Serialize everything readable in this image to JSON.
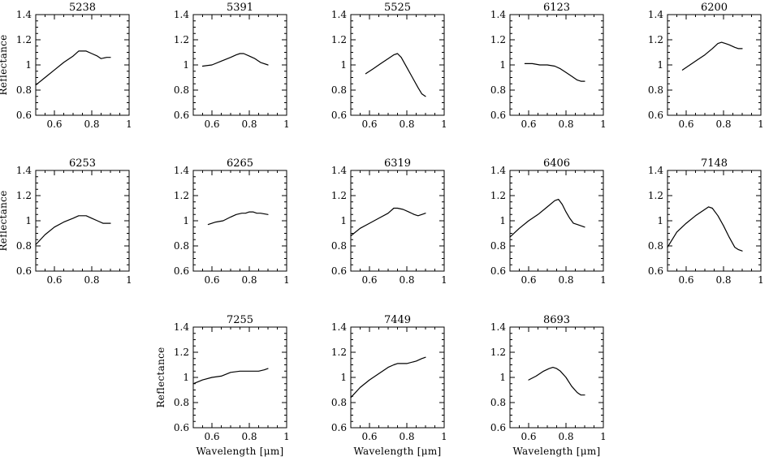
{
  "chart_data": [
    {
      "type": "line",
      "title": "5238",
      "xlabel": "",
      "ylabel": "Reflectance",
      "xlim": [
        0.5,
        1.0
      ],
      "ylim": [
        0.6,
        1.4
      ],
      "xticks": [
        "0.6",
        "0.8",
        "1"
      ],
      "yticks": [
        "0.6",
        "0.8",
        "1",
        "1.2",
        "1.4"
      ],
      "series": [
        {
          "x": [
            0.5,
            0.55,
            0.6,
            0.65,
            0.7,
            0.73,
            0.75,
            0.77,
            0.8,
            0.83,
            0.85,
            0.88,
            0.9
          ],
          "y": [
            0.84,
            0.9,
            0.96,
            1.02,
            1.07,
            1.11,
            1.11,
            1.11,
            1.09,
            1.07,
            1.05,
            1.06,
            1.06
          ]
        }
      ]
    },
    {
      "type": "line",
      "title": "5391",
      "xlabel": "",
      "ylabel": "",
      "xlim": [
        0.5,
        1.0
      ],
      "ylim": [
        0.6,
        1.4
      ],
      "xticks": [
        "0.6",
        "0.8",
        "1"
      ],
      "yticks": [
        "0.6",
        "0.8",
        "1",
        "1.2",
        "1.4"
      ],
      "series": [
        {
          "x": [
            0.55,
            0.6,
            0.65,
            0.7,
            0.73,
            0.75,
            0.77,
            0.8,
            0.83,
            0.86,
            0.9
          ],
          "y": [
            0.99,
            1.0,
            1.03,
            1.06,
            1.08,
            1.09,
            1.09,
            1.07,
            1.05,
            1.02,
            1.0
          ]
        }
      ]
    },
    {
      "type": "line",
      "title": "5525",
      "xlabel": "",
      "ylabel": "",
      "xlim": [
        0.5,
        1.0
      ],
      "ylim": [
        0.6,
        1.4
      ],
      "xticks": [
        "0.6",
        "0.8",
        "1"
      ],
      "yticks": [
        "0.6",
        "0.8",
        "1",
        "1.2",
        "1.4"
      ],
      "series": [
        {
          "x": [
            0.58,
            0.62,
            0.66,
            0.7,
            0.73,
            0.75,
            0.77,
            0.8,
            0.83,
            0.86,
            0.88,
            0.9
          ],
          "y": [
            0.93,
            0.97,
            1.01,
            1.05,
            1.08,
            1.09,
            1.06,
            0.98,
            0.9,
            0.82,
            0.77,
            0.75
          ]
        }
      ]
    },
    {
      "type": "line",
      "title": "6123",
      "xlabel": "",
      "ylabel": "",
      "xlim": [
        0.5,
        1.0
      ],
      "ylim": [
        0.6,
        1.4
      ],
      "xticks": [
        "0.6",
        "0.8",
        "1"
      ],
      "yticks": [
        "0.6",
        "0.8",
        "1",
        "1.2",
        "1.4"
      ],
      "series": [
        {
          "x": [
            0.58,
            0.62,
            0.66,
            0.7,
            0.74,
            0.77,
            0.8,
            0.83,
            0.86,
            0.88,
            0.9
          ],
          "y": [
            1.01,
            1.01,
            1.0,
            1.0,
            0.99,
            0.97,
            0.94,
            0.91,
            0.88,
            0.87,
            0.87
          ]
        }
      ]
    },
    {
      "type": "line",
      "title": "6200",
      "xlabel": "",
      "ylabel": "",
      "xlim": [
        0.5,
        1.0
      ],
      "ylim": [
        0.6,
        1.4
      ],
      "xticks": [
        "0.6",
        "0.8",
        "1"
      ],
      "yticks": [
        "0.6",
        "0.8",
        "1",
        "1.2",
        "1.4"
      ],
      "series": [
        {
          "x": [
            0.58,
            0.62,
            0.66,
            0.7,
            0.74,
            0.77,
            0.79,
            0.81,
            0.83,
            0.86,
            0.88,
            0.9
          ],
          "y": [
            0.96,
            1.0,
            1.04,
            1.08,
            1.13,
            1.17,
            1.18,
            1.17,
            1.16,
            1.14,
            1.13,
            1.13
          ]
        }
      ]
    },
    {
      "type": "line",
      "title": "6253",
      "xlabel": "",
      "ylabel": "Reflectance",
      "xlim": [
        0.5,
        1.0
      ],
      "ylim": [
        0.6,
        1.4
      ],
      "xticks": [
        "0.6",
        "0.8",
        "1"
      ],
      "yticks": [
        "0.6",
        "0.8",
        "1",
        "1.2",
        "1.4"
      ],
      "series": [
        {
          "x": [
            0.5,
            0.55,
            0.6,
            0.65,
            0.7,
            0.73,
            0.75,
            0.77,
            0.8,
            0.83,
            0.86,
            0.9
          ],
          "y": [
            0.81,
            0.89,
            0.95,
            0.99,
            1.02,
            1.04,
            1.04,
            1.04,
            1.02,
            1.0,
            0.98,
            0.98
          ]
        }
      ]
    },
    {
      "type": "line",
      "title": "6265",
      "xlabel": "",
      "ylabel": "",
      "xlim": [
        0.5,
        1.0
      ],
      "ylim": [
        0.6,
        1.4
      ],
      "xticks": [
        "0.6",
        "0.8",
        "1"
      ],
      "yticks": [
        "0.6",
        "0.8",
        "1",
        "1.2",
        "1.4"
      ],
      "series": [
        {
          "x": [
            0.58,
            0.62,
            0.66,
            0.7,
            0.73,
            0.76,
            0.78,
            0.8,
            0.82,
            0.84,
            0.86,
            0.9
          ],
          "y": [
            0.97,
            0.99,
            1.0,
            1.03,
            1.05,
            1.06,
            1.06,
            1.07,
            1.07,
            1.06,
            1.06,
            1.05
          ]
        }
      ]
    },
    {
      "type": "line",
      "title": "6319",
      "xlabel": "",
      "ylabel": "",
      "xlim": [
        0.5,
        1.0
      ],
      "ylim": [
        0.6,
        1.4
      ],
      "xticks": [
        "0.6",
        "0.8",
        "1"
      ],
      "yticks": [
        "0.6",
        "0.8",
        "1",
        "1.2",
        "1.4"
      ],
      "series": [
        {
          "x": [
            0.5,
            0.55,
            0.6,
            0.65,
            0.7,
            0.73,
            0.75,
            0.78,
            0.81,
            0.84,
            0.86,
            0.88,
            0.9
          ],
          "y": [
            0.88,
            0.94,
            0.98,
            1.02,
            1.06,
            1.1,
            1.1,
            1.09,
            1.07,
            1.05,
            1.04,
            1.05,
            1.06
          ]
        }
      ]
    },
    {
      "type": "line",
      "title": "6406",
      "xlabel": "",
      "ylabel": "",
      "xlim": [
        0.5,
        1.0
      ],
      "ylim": [
        0.6,
        1.4
      ],
      "xticks": [
        "0.6",
        "0.8",
        "1"
      ],
      "yticks": [
        "0.6",
        "0.8",
        "1",
        "1.2",
        "1.4"
      ],
      "series": [
        {
          "x": [
            0.5,
            0.55,
            0.6,
            0.65,
            0.7,
            0.74,
            0.76,
            0.78,
            0.8,
            0.82,
            0.84,
            0.86,
            0.88,
            0.9
          ],
          "y": [
            0.87,
            0.94,
            1.0,
            1.05,
            1.11,
            1.16,
            1.17,
            1.13,
            1.07,
            1.02,
            0.98,
            0.97,
            0.96,
            0.95
          ]
        }
      ]
    },
    {
      "type": "line",
      "title": "7148",
      "xlabel": "",
      "ylabel": "",
      "xlim": [
        0.5,
        1.0
      ],
      "ylim": [
        0.6,
        1.4
      ],
      "xticks": [
        "0.6",
        "0.8",
        "1"
      ],
      "yticks": [
        "0.6",
        "0.8",
        "1",
        "1.2",
        "1.4"
      ],
      "series": [
        {
          "x": [
            0.5,
            0.55,
            0.6,
            0.65,
            0.7,
            0.72,
            0.74,
            0.77,
            0.8,
            0.83,
            0.86,
            0.88,
            0.9
          ],
          "y": [
            0.79,
            0.91,
            0.98,
            1.04,
            1.09,
            1.11,
            1.1,
            1.04,
            0.96,
            0.87,
            0.79,
            0.77,
            0.76
          ]
        }
      ]
    },
    {
      "type": "line",
      "title": "7255",
      "xlabel": "Wavelength [μm]",
      "ylabel": "Reflectance",
      "xlim": [
        0.5,
        1.0
      ],
      "ylim": [
        0.6,
        1.4
      ],
      "xticks": [
        "0.6",
        "0.8",
        "1"
      ],
      "yticks": [
        "0.6",
        "0.8",
        "1",
        "1.2",
        "1.4"
      ],
      "series": [
        {
          "x": [
            0.5,
            0.55,
            0.6,
            0.65,
            0.7,
            0.75,
            0.8,
            0.85,
            0.88,
            0.9
          ],
          "y": [
            0.95,
            0.98,
            1.0,
            1.01,
            1.04,
            1.05,
            1.05,
            1.05,
            1.06,
            1.07
          ]
        }
      ]
    },
    {
      "type": "line",
      "title": "7449",
      "xlabel": "Wavelength [μm]",
      "ylabel": "",
      "xlim": [
        0.5,
        1.0
      ],
      "ylim": [
        0.6,
        1.4
      ],
      "xticks": [
        "0.6",
        "0.8",
        "1"
      ],
      "yticks": [
        "0.6",
        "0.8",
        "1",
        "1.2",
        "1.4"
      ],
      "series": [
        {
          "x": [
            0.5,
            0.55,
            0.6,
            0.65,
            0.7,
            0.73,
            0.75,
            0.8,
            0.85,
            0.88,
            0.9
          ],
          "y": [
            0.84,
            0.92,
            0.98,
            1.03,
            1.08,
            1.1,
            1.11,
            1.11,
            1.13,
            1.15,
            1.16
          ]
        }
      ]
    },
    {
      "type": "line",
      "title": "8693",
      "xlabel": "Wavelength [μm]",
      "ylabel": "",
      "xlim": [
        0.5,
        1.0
      ],
      "ylim": [
        0.6,
        1.4
      ],
      "xticks": [
        "0.6",
        "0.8",
        "1"
      ],
      "yticks": [
        "0.6",
        "0.8",
        "1",
        "1.2",
        "1.4"
      ],
      "series": [
        {
          "x": [
            0.6,
            0.64,
            0.68,
            0.71,
            0.73,
            0.75,
            0.77,
            0.8,
            0.83,
            0.86,
            0.88,
            0.9
          ],
          "y": [
            0.98,
            1.01,
            1.05,
            1.07,
            1.08,
            1.07,
            1.05,
            1.0,
            0.93,
            0.88,
            0.86,
            0.86
          ]
        }
      ]
    }
  ]
}
